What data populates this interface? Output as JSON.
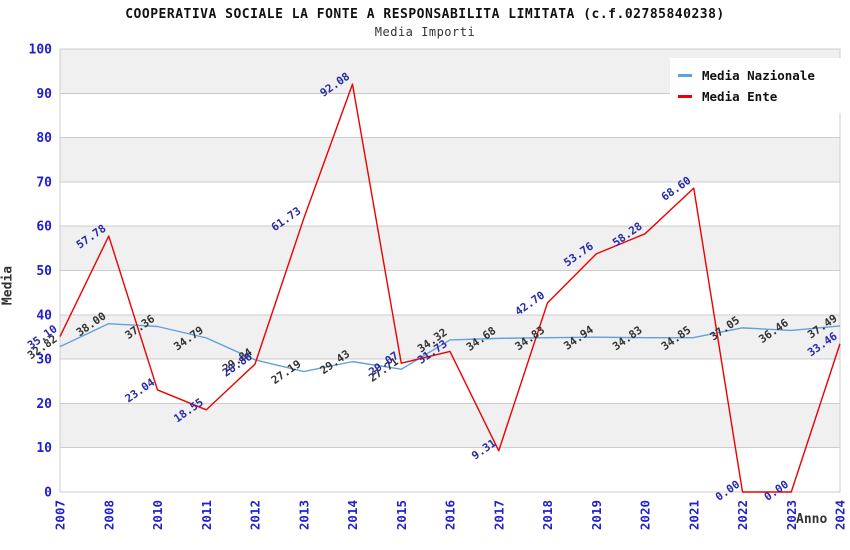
{
  "chart_data": {
    "type": "line",
    "title": "COOPERATIVA SOCIALE LA FONTE A RESPONSABILITA LIMITATA (c.f.02785840238)",
    "subtitle": "Media Importi",
    "xlabel": "Anno",
    "ylabel": "Media",
    "ylim": [
      0,
      100
    ],
    "y_ticks": [
      0,
      10,
      20,
      30,
      40,
      50,
      60,
      70,
      80,
      90,
      100
    ],
    "grid": true,
    "legend_position": "top-right",
    "categories": [
      "2007",
      "2008",
      "2010",
      "2011",
      "2012",
      "2013",
      "2014",
      "2015",
      "2016",
      "2017",
      "2018",
      "2019",
      "2020",
      "2021",
      "2022",
      "2023",
      "2024"
    ],
    "series": [
      {
        "name": "Media Nazionale",
        "color": "#62a1dc",
        "label_color": "#333333",
        "values": [
          32.82,
          38.0,
          37.36,
          34.79,
          29.84,
          27.19,
          29.43,
          27.71,
          34.32,
          34.68,
          34.83,
          34.94,
          34.83,
          34.85,
          37.05,
          36.46,
          37.49
        ]
      },
      {
        "name": "Media Ente",
        "color": "#ee0000",
        "label_color": "#2a2aa8",
        "values": [
          35.1,
          57.78,
          23.04,
          18.55,
          28.86,
          61.73,
          92.08,
          29.07,
          31.73,
          9.31,
          42.7,
          53.76,
          58.28,
          68.6,
          0.0,
          0.0,
          33.46
        ]
      }
    ],
    "colors": {
      "band": "#f0f0f0",
      "grid_line": "#cccccc",
      "plot_border": "#cccccc",
      "tick_text": "#2020cc",
      "axis_title_text": "#333333"
    }
  }
}
